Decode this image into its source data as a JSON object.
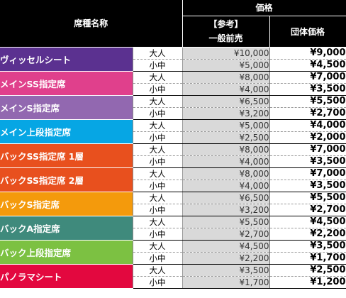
{
  "header": {
    "seat_name": "席種名称",
    "price": "価格",
    "general_reference": "【参考】",
    "general": "一般前売",
    "group": "団体価格"
  },
  "age_labels": {
    "adult": "大人",
    "child": "小中"
  },
  "seats": [
    {
      "name": "ヴィッセルシート",
      "color": "#5b3190",
      "adult_general": "¥10,000",
      "adult_group": "¥9,000",
      "child_general": "¥5,000",
      "child_group": "¥4,500"
    },
    {
      "name": "メインSS指定席",
      "color": "#e0408c",
      "adult_general": "¥8,000",
      "adult_group": "¥7,000",
      "child_general": "¥4,000",
      "child_group": "¥3,500"
    },
    {
      "name": "メインS指定席",
      "color": "#9268b0",
      "adult_general": "¥6,500",
      "adult_group": "¥5,500",
      "child_general": "¥3,200",
      "child_group": "¥2,700"
    },
    {
      "name": "メイン上段指定席",
      "color": "#06a6e4",
      "adult_general": "¥5,000",
      "adult_group": "¥4,000",
      "child_general": "¥2,500",
      "child_group": "¥2,000"
    },
    {
      "name": "バックSS指定席 1層",
      "color": "#e8501e",
      "adult_general": "¥8,000",
      "adult_group": "¥7,000",
      "child_general": "¥4,000",
      "child_group": "¥3,500"
    },
    {
      "name": "バックSS指定席 2層",
      "color": "#e8501e",
      "adult_general": "¥8,000",
      "adult_group": "¥7,000",
      "child_general": "¥4,000",
      "child_group": "¥3,500"
    },
    {
      "name": "バックS指定席",
      "color": "#f49a0c",
      "adult_general": "¥6,500",
      "adult_group": "¥5,500",
      "child_general": "¥3,200",
      "child_group": "¥2,700"
    },
    {
      "name": "バックA指定席",
      "color": "#3f8a7c",
      "adult_general": "¥5,500",
      "adult_group": "¥4,500",
      "child_general": "¥2,700",
      "child_group": "¥2,200"
    },
    {
      "name": "バック上段指定席",
      "color": "#7cc142",
      "adult_general": "¥4,500",
      "adult_group": "¥3,500",
      "child_general": "¥2,200",
      "child_group": "¥1,700"
    },
    {
      "name": "パノラマシート",
      "color": "#e3083f",
      "adult_general": "¥3,500",
      "adult_group": "¥2,500",
      "child_general": "¥1,700",
      "child_group": "¥1,200"
    }
  ]
}
